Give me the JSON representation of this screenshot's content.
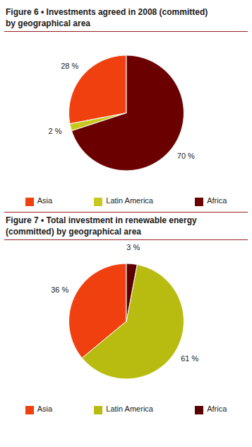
{
  "chart_data": [
    {
      "type": "pie",
      "title": "Figure 6 • Investments agreed in 2008 (committed)",
      "subtitle": "by geographical area",
      "categories": [
        "Asia",
        "Latin America",
        "Africa"
      ],
      "values": [
        28,
        2,
        70
      ],
      "value_labels": [
        "28 %",
        "2 %",
        "70 %"
      ],
      "colors": [
        "#f04010",
        "#c8c820",
        "#6b0000"
      ],
      "data_labels": true,
      "legend": "bottom"
    },
    {
      "type": "pie",
      "title": "Figure 7 • Total investment in renewable energy",
      "subtitle": "(committed) by geographical area",
      "categories": [
        "Asia",
        "Latin America",
        "Africa"
      ],
      "values": [
        36,
        61,
        3
      ],
      "value_labels": [
        "36 %",
        "61 %",
        "3 %"
      ],
      "colors": [
        "#f04010",
        "#b8bc10",
        "#5a0000"
      ],
      "data_labels": true,
      "legend": "bottom"
    }
  ]
}
